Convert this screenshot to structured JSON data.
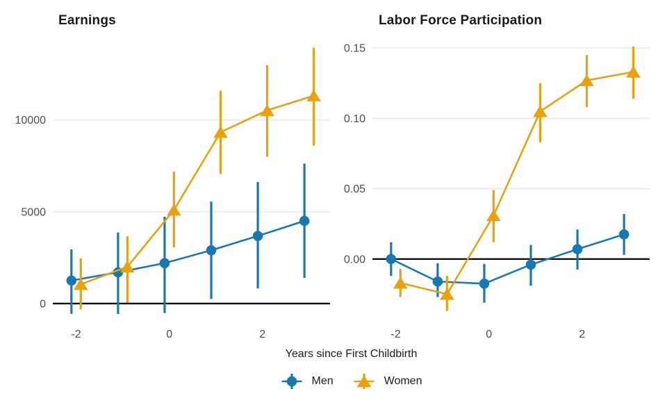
{
  "figure": {
    "background": "#ffffff",
    "xlabel": "Years since First Childbirth"
  },
  "palette": {
    "men": "#1878b4",
    "women": "#E9A10D",
    "grid": "#EBEBEB",
    "zero_line": "#000000",
    "tick_label": "#4d4d4d",
    "title_text": "#1a1a1a"
  },
  "legend": {
    "items": [
      {
        "label": "Men",
        "marker": "circle",
        "color": "#1878b4"
      },
      {
        "label": "Women",
        "marker": "triangle",
        "color": "#E9A10D"
      }
    ]
  },
  "chart_data": [
    {
      "type": "line",
      "subtype": "pointrange-event-study",
      "title": "Earnings",
      "x": [
        -2,
        -1,
        0,
        1,
        2,
        3
      ],
      "xticks": [
        -2,
        0,
        2
      ],
      "xlim": [
        -2.5,
        3.45
      ],
      "ylim": [
        -1100,
        14450
      ],
      "yticks": [
        {
          "value": 0,
          "label": "0"
        },
        {
          "value": 5000,
          "label": "5000"
        },
        {
          "value": 10000,
          "label": "10000"
        }
      ],
      "zero_line_at": 0,
      "grid": true,
      "series": [
        {
          "name": "Men",
          "marker": "circle",
          "color": "#1878b4",
          "est": [
            1250,
            1700,
            2200,
            2900,
            3680,
            4500
          ],
          "lo": [
            -560,
            -570,
            -520,
            250,
            820,
            1390
          ],
          "hi": [
            2950,
            3870,
            4730,
            5550,
            6620,
            7620
          ]
        },
        {
          "name": "Women",
          "marker": "triangle",
          "color": "#E9A10D",
          "est": [
            1050,
            2000,
            5100,
            9330,
            10520,
            11320
          ],
          "lo": [
            -310,
            50,
            3050,
            7060,
            8000,
            8600
          ],
          "hi": [
            2460,
            3660,
            7180,
            11590,
            12980,
            13930
          ]
        }
      ]
    },
    {
      "type": "line",
      "subtype": "pointrange-event-study",
      "title": "Labor Force Participation",
      "x": [
        -2,
        -1,
        0,
        1,
        2,
        3
      ],
      "xticks": [
        -2,
        0,
        2
      ],
      "xlim": [
        -2.5,
        3.45
      ],
      "ylim": [
        -0.046,
        0.157
      ],
      "yticks": [
        {
          "value": 0.0,
          "label": "0.00"
        },
        {
          "value": 0.05,
          "label": "0.05"
        },
        {
          "value": 0.1,
          "label": "0.10"
        },
        {
          "value": 0.15,
          "label": "0.15"
        }
      ],
      "zero_line_at": 0,
      "grid": true,
      "series": [
        {
          "name": "Men",
          "marker": "circle",
          "color": "#1878b4",
          "est": [
            0.0,
            -0.016,
            -0.0175,
            -0.004,
            0.007,
            0.0175
          ],
          "lo": [
            -0.012,
            -0.027,
            -0.031,
            -0.019,
            -0.0075,
            0.003
          ],
          "hi": [
            0.012,
            -0.003,
            -0.0035,
            0.01,
            0.021,
            0.032
          ]
        },
        {
          "name": "Women",
          "marker": "triangle",
          "color": "#E9A10D",
          "est": [
            -0.017,
            -0.025,
            0.031,
            0.105,
            0.127,
            0.133
          ],
          "lo": [
            -0.027,
            -0.037,
            0.012,
            0.083,
            0.108,
            0.114
          ],
          "hi": [
            -0.007,
            -0.012,
            0.049,
            0.125,
            0.145,
            0.151
          ]
        }
      ]
    }
  ]
}
